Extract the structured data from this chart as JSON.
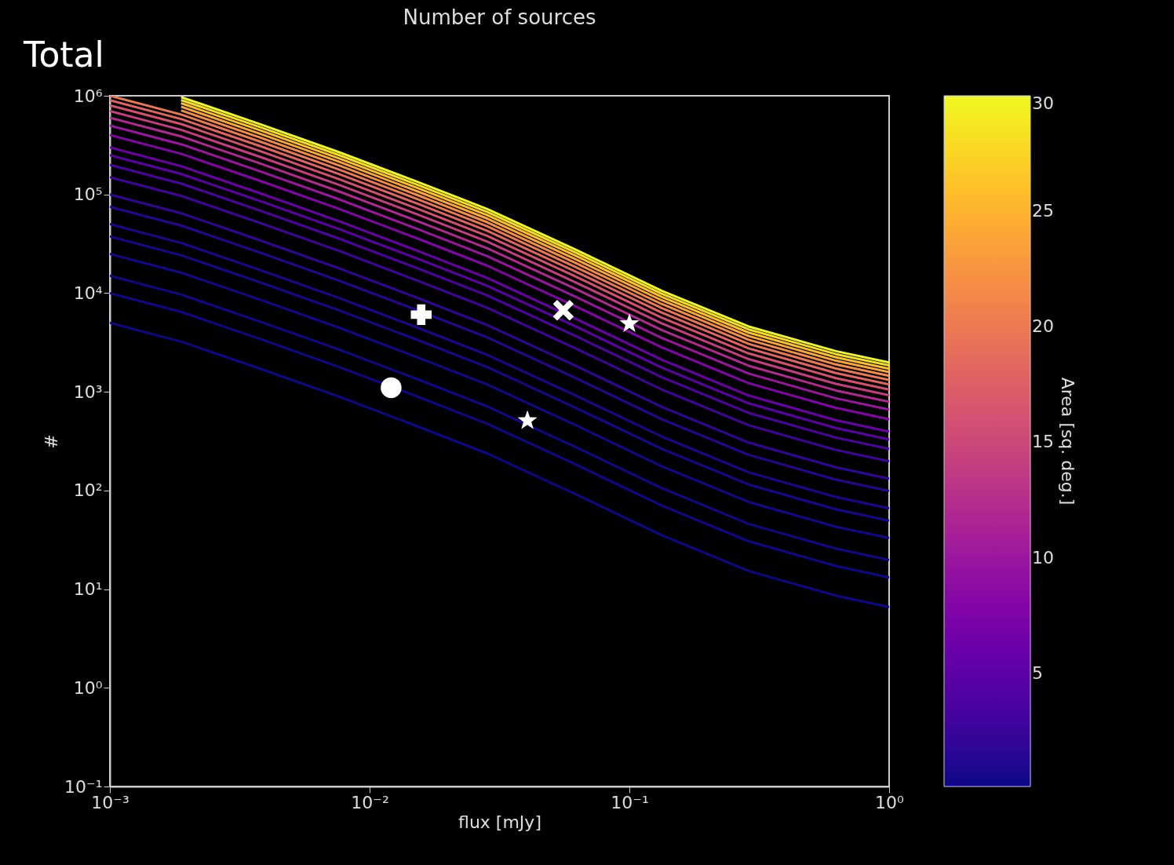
{
  "chart_data": {
    "type": "line",
    "title": "Number of sources",
    "xlabel": "flux [mJy]",
    "ylabel": "#",
    "clabel": "Area [sq. deg.]",
    "annotations": [
      "Total"
    ],
    "log": "xy",
    "grid": false,
    "xlim": [
      0.001,
      1
    ],
    "xticks": [
      {
        "value": 0.001,
        "label": "10⁻³"
      },
      {
        "value": 0.01,
        "label": "10⁻²"
      },
      {
        "value": 0.1,
        "label": "10⁻¹"
      },
      {
        "value": 1,
        "label": "10⁰"
      }
    ],
    "ylim": [
      0.1,
      1000000
    ],
    "yticks": [
      {
        "value": 0.1,
        "label": "10⁻¹"
      },
      {
        "value": 1,
        "label": "10⁰"
      },
      {
        "value": 10,
        "label": "10¹"
      },
      {
        "value": 100,
        "label": "10²"
      },
      {
        "value": 1000,
        "label": "10³"
      },
      {
        "value": 10000,
        "label": "10⁴"
      },
      {
        "value": 100000,
        "label": "10⁵"
      },
      {
        "value": 1000000,
        "label": "10⁶"
      }
    ],
    "clim": [
      0.1,
      30
    ],
    "cticks": [
      5,
      10,
      15,
      20,
      25,
      30
    ],
    "x": [
      0.001,
      0.00188,
      0.00378,
      0.00757,
      0.0152,
      0.0284,
      0.0615,
      0.133,
      0.288,
      0.624,
      1
    ],
    "series": [
      {
        "color": "#0d0887",
        "values": [
          5000,
          3230,
          1720,
          900,
          450,
          237,
          93,
          35.3,
          15.3,
          8.6,
          6.6
        ]
      },
      {
        "color": "#0e0888",
        "values": [
          10000,
          6460,
          3440,
          1800,
          900,
          474,
          186,
          70.6,
          30.6,
          17.2,
          13.2
        ]
      },
      {
        "color": "#100888",
        "values": [
          15000,
          9690,
          5160,
          2700,
          1350,
          711,
          279,
          106,
          45.9,
          25.8,
          19.8
        ]
      },
      {
        "color": "#13078a",
        "values": [
          25000,
          16150,
          8600,
          4500,
          2250,
          1185,
          465,
          176.5,
          76.5,
          43,
          33
        ]
      },
      {
        "color": "#18068c",
        "values": [
          37500,
          24225,
          12900,
          6750,
          3375,
          1778,
          698,
          265,
          115,
          64.5,
          49.5
        ]
      },
      {
        "color": "#1c068e",
        "values": [
          50000,
          32300,
          17200,
          9000,
          4500,
          2370,
          930,
          353,
          153,
          86,
          66
        ]
      },
      {
        "color": "#270592",
        "values": [
          75000,
          48450,
          25800,
          13500,
          6750,
          3555,
          1395,
          530,
          230,
          129,
          99
        ]
      },
      {
        "color": "#300597",
        "values": [
          100000,
          64600,
          34400,
          18000,
          9000,
          4740,
          1860,
          706,
          306,
          172,
          132
        ]
      },
      {
        "color": "#3f049c",
        "values": [
          150000,
          96900,
          51600,
          27000,
          13500,
          7110,
          2790,
          1059,
          459,
          258,
          198
        ]
      },
      {
        "color": "#4c03a0",
        "values": [
          200000,
          129200,
          68800,
          36000,
          18000,
          9480,
          3720,
          1412,
          612,
          344,
          264
        ]
      },
      {
        "color": "#5c01a6",
        "values": [
          250000,
          161500,
          86000,
          45000,
          22500,
          11850,
          4650,
          1765,
          765,
          430,
          330
        ]
      },
      {
        "color": "#6900a8",
        "values": [
          300000,
          193800,
          103200,
          54000,
          27000,
          14220,
          5580,
          2118,
          918,
          516,
          396
        ]
      },
      {
        "color": "#8305a7",
        "values": [
          400000,
          258400,
          137600,
          72000,
          36000,
          18960,
          7440,
          2824,
          1224,
          688,
          528
        ]
      },
      {
        "color": "#9a169f",
        "values": [
          500000,
          323000,
          172000,
          90000,
          45000,
          23700,
          9300,
          3530,
          1530,
          860,
          660
        ]
      },
      {
        "color": "#b02991",
        "values": [
          600000,
          387600,
          206400,
          108000,
          54000,
          28440,
          11160,
          4236,
          1836,
          1032,
          792
        ]
      },
      {
        "color": "#c33d80",
        "values": [
          700000,
          452200,
          240800,
          126000,
          63000,
          33180,
          13020,
          4942,
          2142,
          1204,
          924
        ]
      },
      {
        "color": "#d4506e",
        "values": [
          800000,
          516800,
          275200,
          144000,
          72000,
          37920,
          14880,
          5648,
          2448,
          1376,
          1056
        ]
      },
      {
        "color": "#e16462",
        "values": [
          900000,
          581400,
          309600,
          162000,
          81000,
          42660,
          16740,
          6354,
          2754,
          1548,
          1188
        ]
      },
      {
        "color": "#ec7853",
        "values": [
          1000000,
          646000,
          344000,
          180000,
          90000,
          47400,
          18600,
          7060,
          3060,
          1720,
          1320
        ]
      },
      {
        "color": "#f58e44",
        "values": [
          null,
          710600,
          378400,
          198000,
          99000,
          52140,
          20460,
          7766,
          3366,
          1892,
          1452
        ]
      },
      {
        "color": "#fca636",
        "values": [
          null,
          775200,
          412800,
          216000,
          108000,
          56880,
          22320,
          8472,
          3672,
          2064,
          1584
        ]
      },
      {
        "color": "#fdc029",
        "values": [
          null,
          839800,
          447200,
          234000,
          117000,
          61620,
          24180,
          9178,
          3978,
          2236,
          1716
        ]
      },
      {
        "color": "#f9dc24",
        "values": [
          null,
          904400,
          481600,
          252000,
          126000,
          66360,
          26040,
          9884,
          4284,
          2408,
          1848
        ]
      },
      {
        "color": "#f0f921",
        "values": [
          null,
          969000,
          516000,
          270000,
          135000,
          71100,
          27900,
          10590,
          4590,
          2580,
          1980
        ]
      },
      {
        "type": "scatter",
        "marker": "cross",
        "color": "#ffffff",
        "x": [
          0.0158
        ],
        "values": [
          6050
        ]
      },
      {
        "type": "scatter",
        "marker": "x",
        "color": "#ffffff",
        "x": [
          0.0557
        ],
        "values": [
          6700
        ]
      },
      {
        "type": "scatter",
        "marker": "star",
        "color": "#ffffff",
        "x": [
          0.1,
          0.0405
        ],
        "values": [
          4900,
          510
        ]
      },
      {
        "type": "scatter",
        "marker": "circle",
        "color": "#ffffff",
        "x": [
          0.0121
        ],
        "values": [
          1100
        ]
      }
    ]
  }
}
